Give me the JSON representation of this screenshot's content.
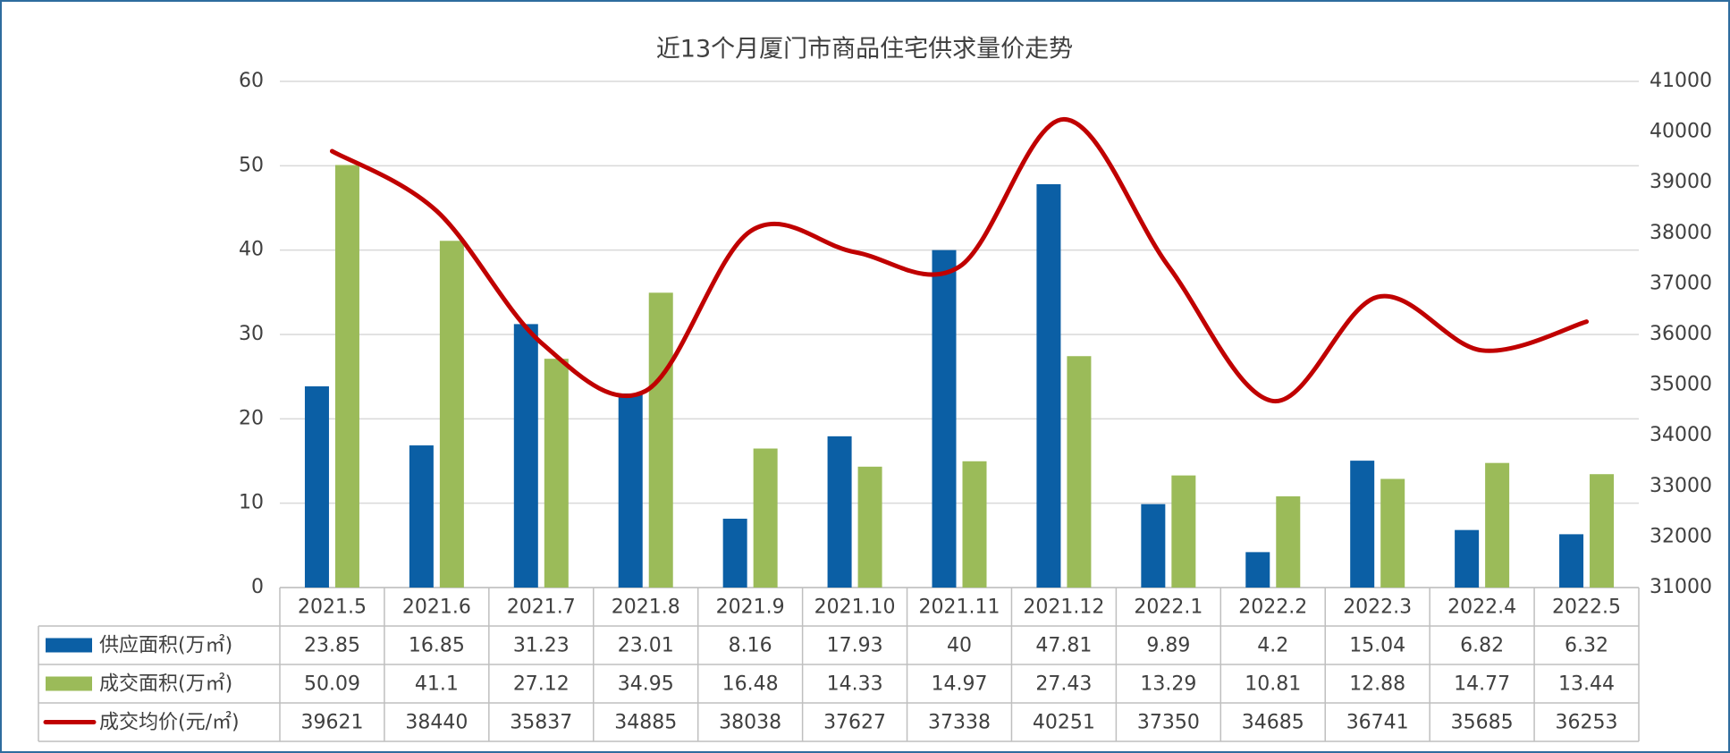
{
  "chart_data": {
    "type": "bar",
    "title": "近13个月厦门市商品住宅供求量价走势",
    "categories": [
      "2021.5",
      "2021.6",
      "2021.7",
      "2021.8",
      "2021.9",
      "2021.10",
      "2021.11",
      "2021.12",
      "2022.1",
      "2022.2",
      "2022.3",
      "2022.4",
      "2022.5"
    ],
    "series": [
      {
        "name": "供应面积(万㎡)",
        "type": "bar",
        "color": "#0b5fa5",
        "values": [
          23.85,
          16.85,
          31.23,
          23.01,
          8.16,
          17.93,
          40,
          47.81,
          9.89,
          4.2,
          15.04,
          6.82,
          6.32
        ]
      },
      {
        "name": "成交面积(万㎡)",
        "type": "bar",
        "color": "#9bbb59",
        "values": [
          50.09,
          41.1,
          27.12,
          34.95,
          16.48,
          14.33,
          14.97,
          27.43,
          13.29,
          10.81,
          12.88,
          14.77,
          13.44
        ]
      },
      {
        "name": "成交均价(元/㎡)",
        "type": "line",
        "axis": "y2",
        "color": "#c00000",
        "values": [
          39621,
          38440,
          35837,
          34885,
          38038,
          37627,
          37338,
          40251,
          37350,
          34685,
          36741,
          35685,
          36253
        ]
      }
    ],
    "ylim": [
      0,
      60
    ],
    "yticks": [
      0,
      10,
      20,
      30,
      40,
      50,
      60
    ],
    "y2lim": [
      31000,
      41000
    ],
    "y2ticks": [
      31000,
      32000,
      33000,
      34000,
      35000,
      36000,
      37000,
      38000,
      39000,
      40000,
      41000
    ],
    "grid": true
  }
}
